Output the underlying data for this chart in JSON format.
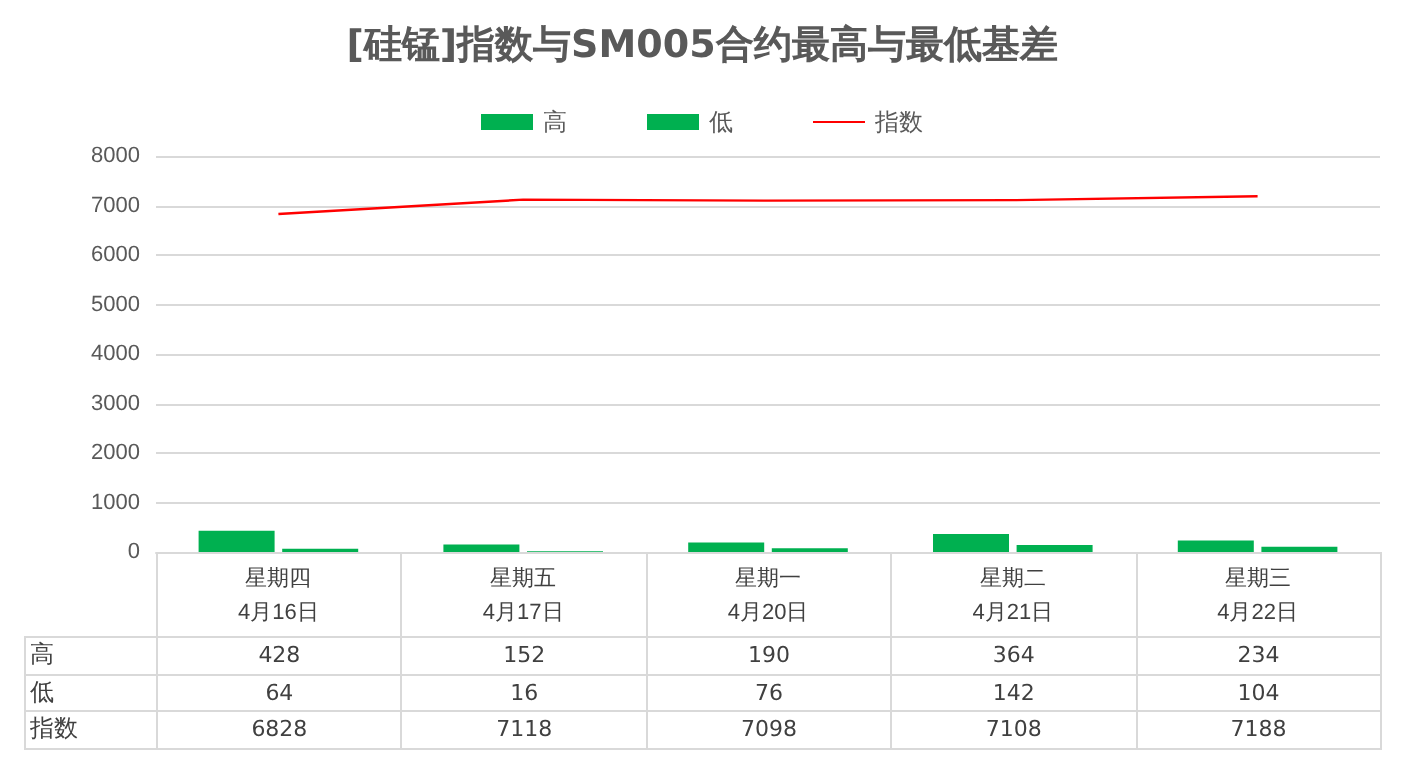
{
  "chart_data": {
    "type": "bar",
    "title": "[硅锰]指数与SM005合约最高与最低基差",
    "categories": [
      "星期四\n4月16日",
      "星期五\n4月17日",
      "星期一\n4月20日",
      "星期二\n4月21日",
      "星期三\n4月22日"
    ],
    "series": [
      {
        "name": "高",
        "color": "#00b050",
        "values": [
          428,
          152,
          190,
          364,
          234
        ]
      },
      {
        "name": "低",
        "color": "#00b050",
        "values": [
          64,
          16,
          76,
          142,
          104
        ]
      },
      {
        "name": "指数",
        "type": "line",
        "color": "#ff0000",
        "values": [
          6828,
          7118,
          7098,
          7108,
          7188
        ]
      }
    ],
    "ylim": [
      0,
      8000
    ],
    "yticks": [
      0,
      1000,
      2000,
      3000,
      4000,
      5000,
      6000,
      7000,
      8000
    ],
    "grid": "y",
    "legend": "top",
    "marker": "none",
    "data_labels": true
  }
}
